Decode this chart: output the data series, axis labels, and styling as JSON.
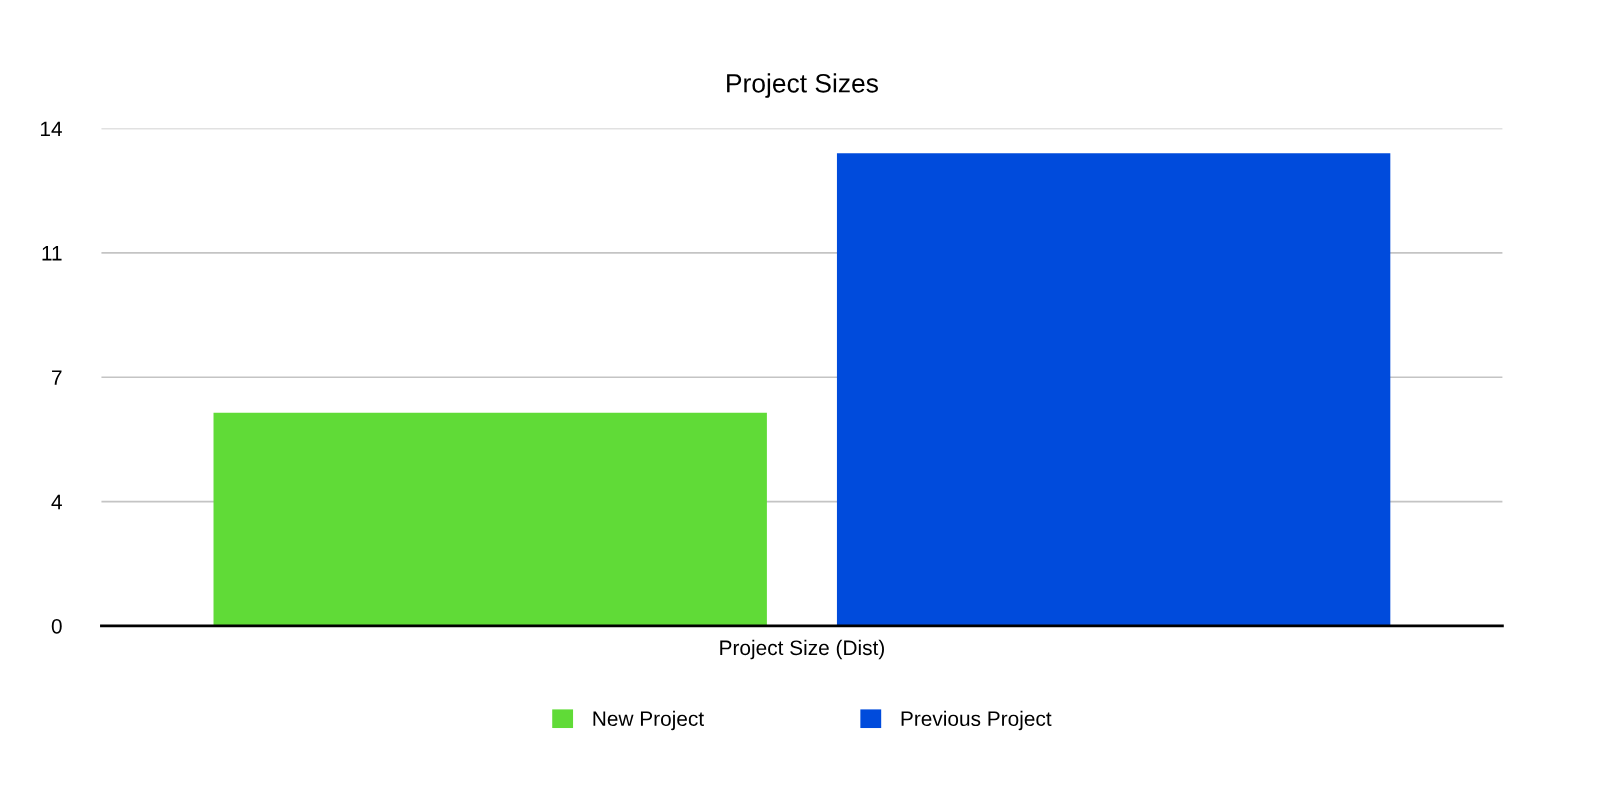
{
  "chart_data": {
    "type": "bar",
    "title": "Project Sizes",
    "categories": [
      "Project Size (Dist)"
    ],
    "series": [
      {
        "name": "New Project",
        "color": "#60db37",
        "values": [
          6
        ]
      },
      {
        "name": "Previous Project",
        "color": "#004bdc",
        "values": [
          13.3
        ]
      }
    ],
    "ylim": [
      0,
      14
    ],
    "yticks": [
      0,
      {
        "value": 3.5,
        "label": "4"
      },
      7,
      {
        "value": 10.5,
        "label": "11"
      },
      14
    ],
    "grid": "y",
    "legend": "bottom"
  }
}
